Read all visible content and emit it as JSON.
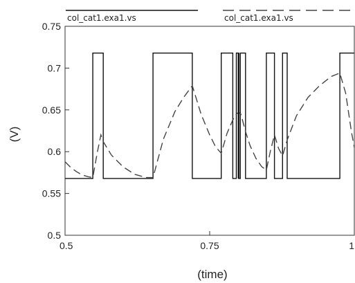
{
  "chart_data": {
    "type": "line",
    "title": "",
    "xlabel": "(time)",
    "ylabel": "(V)",
    "xlim": [
      0.5,
      1.0
    ],
    "ylim": [
      0.5,
      0.75
    ],
    "x_ticks": [
      {
        "value": 0.5,
        "label": "0.5"
      },
      {
        "value": 0.75,
        "label": "0.75"
      },
      {
        "value": 1.0,
        "label": "1"
      }
    ],
    "y_ticks": [
      {
        "value": 0.5,
        "label": "0.5"
      },
      {
        "value": 0.55,
        "label": "0.55"
      },
      {
        "value": 0.6,
        "label": "0.6"
      },
      {
        "value": 0.65,
        "label": "0.65"
      },
      {
        "value": 0.7,
        "label": "0.7"
      },
      {
        "value": 0.75,
        "label": "0.75"
      }
    ],
    "grid": false,
    "legend_position": "top",
    "series": [
      {
        "name": "col_cat1.exa1.vs",
        "style": "solid",
        "color": "#111111",
        "x": [
          0.5,
          0.548,
          0.548,
          0.566,
          0.566,
          0.652,
          0.652,
          0.72,
          0.72,
          0.77,
          0.77,
          0.79,
          0.79,
          0.796,
          0.796,
          0.8,
          0.8,
          0.803,
          0.803,
          0.806,
          0.806,
          0.812,
          0.812,
          0.848,
          0.848,
          0.862,
          0.862,
          0.876,
          0.876,
          0.884,
          0.884,
          0.975,
          0.975,
          1.0
        ],
        "y": [
          0.568,
          0.568,
          0.718,
          0.718,
          0.568,
          0.568,
          0.718,
          0.718,
          0.568,
          0.568,
          0.718,
          0.718,
          0.568,
          0.568,
          0.718,
          0.718,
          0.568,
          0.568,
          0.718,
          0.718,
          0.718,
          0.718,
          0.568,
          0.568,
          0.718,
          0.718,
          0.568,
          0.568,
          0.718,
          0.718,
          0.568,
          0.568,
          0.718,
          0.718
        ]
      },
      {
        "name": "col_cat1.exa1.vs",
        "style": "dashed",
        "color": "#444444",
        "x": [
          0.5,
          0.51,
          0.52,
          0.53,
          0.54,
          0.548,
          0.556,
          0.562,
          0.566,
          0.58,
          0.6,
          0.62,
          0.64,
          0.652,
          0.67,
          0.69,
          0.705,
          0.72,
          0.735,
          0.75,
          0.76,
          0.77,
          0.78,
          0.79,
          0.796,
          0.8,
          0.804,
          0.812,
          0.82,
          0.83,
          0.84,
          0.848,
          0.855,
          0.862,
          0.869,
          0.876,
          0.884,
          0.9,
          0.92,
          0.94,
          0.96,
          0.975,
          0.985,
          0.995,
          1.0
        ],
        "y": [
          0.588,
          0.581,
          0.576,
          0.572,
          0.57,
          0.569,
          0.6,
          0.62,
          0.612,
          0.596,
          0.582,
          0.573,
          0.569,
          0.569,
          0.615,
          0.648,
          0.665,
          0.679,
          0.645,
          0.62,
          0.606,
          0.598,
          0.622,
          0.638,
          0.645,
          0.647,
          0.645,
          0.624,
          0.607,
          0.592,
          0.582,
          0.578,
          0.601,
          0.62,
          0.604,
          0.595,
          0.614,
          0.643,
          0.665,
          0.679,
          0.69,
          0.694,
          0.67,
          0.624,
          0.605
        ]
      }
    ]
  }
}
